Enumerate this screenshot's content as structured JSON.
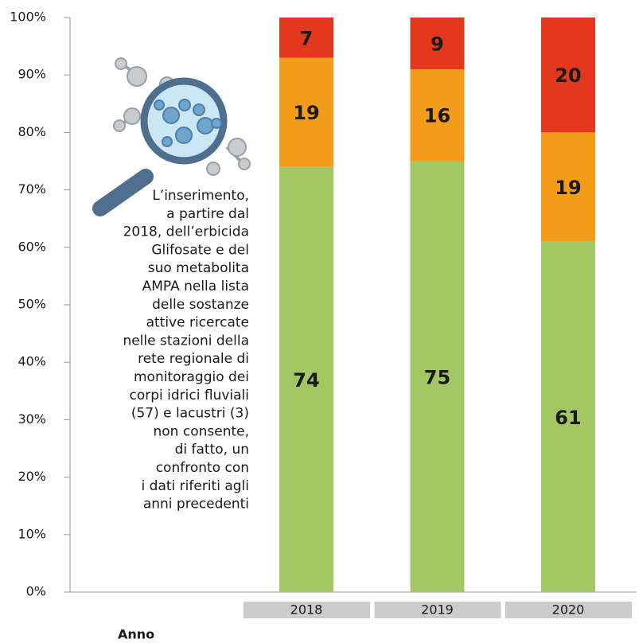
{
  "chart_data": {
    "type": "stacked_bar",
    "categories": [
      "2018",
      "2019",
      "2020"
    ],
    "series": [
      {
        "color": "#a3c863",
        "values": [
          74,
          75,
          61
        ]
      },
      {
        "color": "#f39c1a",
        "values": [
          19,
          16,
          19
        ]
      },
      {
        "color": "#e3381e",
        "values": [
          7,
          9,
          20
        ]
      }
    ],
    "ylim": [
      0,
      100
    ],
    "yticks": [
      {
        "value": 0,
        "label": "0%"
      },
      {
        "value": 10,
        "label": "10%"
      },
      {
        "value": 20,
        "label": "20%"
      },
      {
        "value": 30,
        "label": "30%"
      },
      {
        "value": 40,
        "label": "40%"
      },
      {
        "value": 50,
        "label": "50%"
      },
      {
        "value": 60,
        "label": "60%"
      },
      {
        "value": 70,
        "label": "70%"
      },
      {
        "value": 80,
        "label": "80%"
      },
      {
        "value": 90,
        "label": "90%"
      },
      {
        "value": 100,
        "label": "100%"
      }
    ],
    "xlabel": "Anno",
    "annotation": [
      "L’inserimento,",
      "a partire dal",
      "2018, dell’erbicida",
      "Glifosate e del",
      "suo metabolita",
      "AMPA nella lista",
      "delle sostanze",
      "attive ricercate",
      "nelle stazioni della",
      "rete regionale di",
      "monitoraggio dei",
      "corpi idrici fluviali",
      "(57) e lacustri (3)",
      "non consente,",
      "di fatto, un",
      "confronto con",
      "i dati riferiti agli",
      "anni precedenti"
    ]
  }
}
